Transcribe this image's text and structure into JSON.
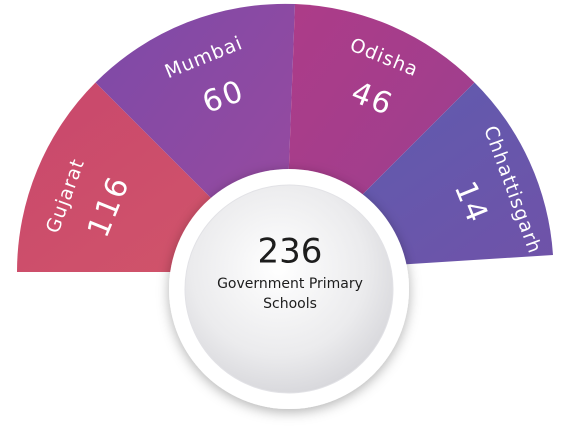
{
  "segments": [
    {
      "label": "Gujarat",
      "value": "116"
    },
    {
      "label": "Mumbai",
      "value": "60"
    },
    {
      "label": "Odisha",
      "value": "46"
    },
    {
      "label": "Chhattisgarh",
      "value": "14"
    }
  ],
  "center": {
    "total": "236",
    "caption": [
      "Government Primary",
      "Schools"
    ]
  }
}
